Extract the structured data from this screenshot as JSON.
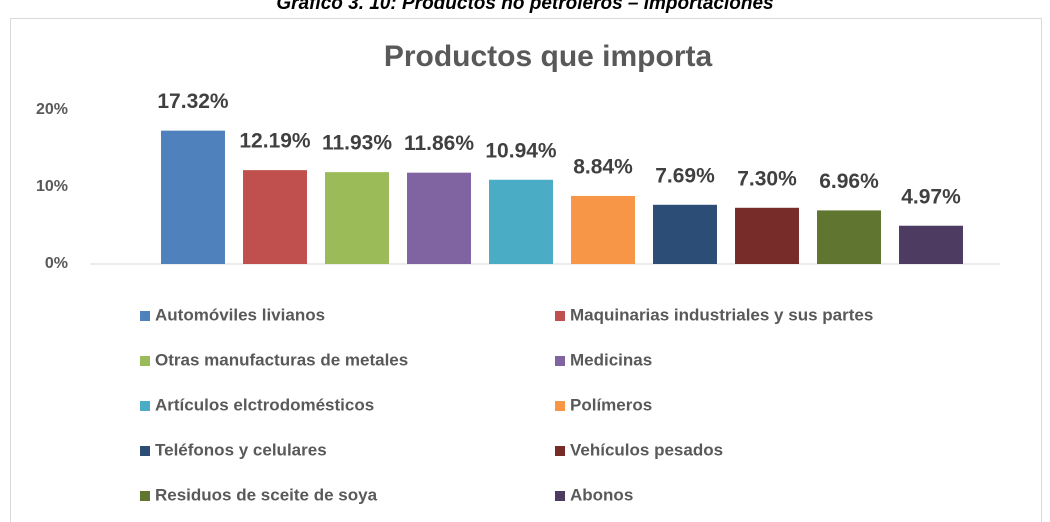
{
  "chart_data": {
    "type": "bar",
    "caption": "Gráfico 3. 10: Productos no petroleros – importaciones",
    "title": "Productos que importa",
    "categories": [
      "Automóviles livianos",
      "Maquinarias industriales y sus partes",
      "Otras manufacturas de metales",
      "Medicinas",
      "Artículos elctrodomésticos",
      "Polímeros",
      "Teléfonos y celulares",
      "Vehículos pesados",
      "Residuos de sceite de soya",
      "Abonos"
    ],
    "values": [
      17.32,
      12.19,
      11.93,
      11.86,
      10.94,
      8.84,
      7.69,
      7.3,
      6.96,
      4.97
    ],
    "value_labels": [
      "17.32%",
      "12.19%",
      "11.93%",
      "11.86%",
      "10.94%",
      "8.84%",
      "7.69%",
      "7.30%",
      "6.96%",
      "4.97%"
    ],
    "colors": [
      "#4f81bd",
      "#c0504d",
      "#9bbb59",
      "#8064a2",
      "#4bacc6",
      "#f79646",
      "#2c4d75",
      "#772c2a",
      "#5f7530",
      "#4d3b62"
    ],
    "ylim": [
      0,
      20
    ],
    "yticks": [
      {
        "value": 0,
        "label": "0%"
      },
      {
        "value": 10,
        "label": "10%"
      },
      {
        "value": 20,
        "label": "20%"
      }
    ],
    "grid": false
  }
}
